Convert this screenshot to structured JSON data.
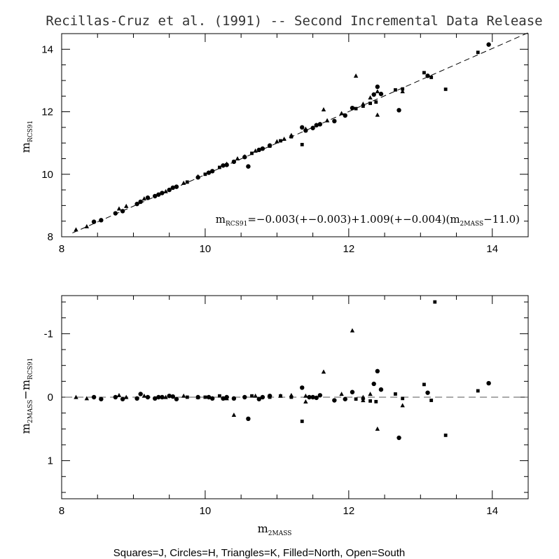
{
  "title": "Recillas-Cruz et al. (1991) -- Second Incremental Data Release",
  "footer": "Squares=J, Circles=H, Triangles=K, Filled=North, Open=South",
  "labels": {
    "top_y_main": "m",
    "top_y_sub": "RCS91",
    "bottom_y_a": "m",
    "bottom_y_a_sub": "2MASS",
    "bottom_y_b": "−m",
    "bottom_y_b_sub": "RCS91",
    "x_main": "m",
    "x_sub": "2MASS"
  },
  "equation": {
    "lhs": "m",
    "lhs_sub": "RCS91",
    "mid": "=−0.003(+−0.003)+1.009(+−0.004)(m",
    "mid_sub": "2MASS",
    "end": "−11.0)"
  },
  "chart_data": [
    {
      "type": "scatter",
      "panel": "top",
      "xlim": [
        8,
        14.5
      ],
      "ylim": [
        8,
        14.5
      ],
      "xticks": [
        8,
        10,
        12,
        14
      ],
      "yticks": [
        8,
        10,
        12,
        14
      ],
      "xtick_labels": [
        "8",
        "10",
        "12",
        "14"
      ],
      "ytick_labels": [
        "8",
        "10",
        "12",
        "14"
      ],
      "fit_line": {
        "intercept_at_11": -0.003,
        "slope": 1.009,
        "pivot": 11.0,
        "style": "dashed"
      },
      "series": [
        {
          "marker": "triangle",
          "points": [
            [
              8.2,
              8.23
            ],
            [
              8.35,
              8.33
            ],
            [
              8.8,
              8.9
            ],
            [
              8.9,
              8.98
            ],
            [
              9.15,
              9.22
            ],
            [
              9.45,
              9.45
            ],
            [
              9.7,
              9.72
            ],
            [
              9.9,
              9.93
            ],
            [
              10.3,
              10.33
            ],
            [
              10.45,
              10.5
            ],
            [
              10.7,
              10.75
            ],
            [
              11.0,
              11.05
            ],
            [
              11.2,
              11.25
            ],
            [
              11.4,
              11.45
            ],
            [
              11.7,
              11.72
            ],
            [
              11.9,
              11.95
            ],
            [
              12.1,
              13.15
            ],
            [
              11.65,
              12.07
            ],
            [
              12.4,
              11.9
            ],
            [
              12.75,
              12.65
            ],
            [
              12.3,
              12.45
            ],
            [
              12.4,
              12.65
            ],
            [
              10.55,
              10.57
            ],
            [
              11.1,
              11.13
            ],
            [
              12.2,
              12.25
            ]
          ]
        },
        {
          "marker": "circle",
          "points": [
            [
              8.45,
              8.48
            ],
            [
              8.55,
              8.53
            ],
            [
              8.75,
              8.75
            ],
            [
              8.85,
              8.82
            ],
            [
              9.05,
              9.05
            ],
            [
              9.1,
              9.12
            ],
            [
              9.2,
              9.25
            ],
            [
              9.3,
              9.3
            ],
            [
              9.4,
              9.4
            ],
            [
              9.5,
              9.5
            ],
            [
              9.6,
              9.6
            ],
            [
              9.9,
              9.9
            ],
            [
              10.05,
              10.05
            ],
            [
              10.1,
              10.1
            ],
            [
              10.3,
              10.3
            ],
            [
              10.4,
              10.4
            ],
            [
              10.55,
              10.55
            ],
            [
              10.6,
              10.25
            ],
            [
              10.8,
              10.82
            ],
            [
              10.9,
              10.92
            ],
            [
              11.35,
              11.5
            ],
            [
              11.5,
              11.48
            ],
            [
              11.6,
              11.6
            ],
            [
              11.8,
              11.7
            ],
            [
              11.95,
              11.88
            ],
            [
              12.05,
              12.12
            ],
            [
              12.35,
              12.55
            ],
            [
              12.4,
              12.8
            ],
            [
              12.45,
              12.57
            ],
            [
              12.7,
              12.05
            ],
            [
              13.1,
              13.15
            ],
            [
              13.95,
              14.15
            ],
            [
              9.35,
              9.35
            ],
            [
              9.55,
              9.57
            ],
            [
              10.25,
              10.28
            ],
            [
              10.75,
              10.78
            ],
            [
              11.4,
              11.4
            ],
            [
              11.55,
              11.57
            ]
          ]
        },
        {
          "marker": "square",
          "points": [
            [
              9.75,
              9.75
            ],
            [
              10.0,
              10.0
            ],
            [
              10.2,
              10.22
            ],
            [
              10.65,
              10.67
            ],
            [
              11.05,
              11.07
            ],
            [
              11.35,
              10.95
            ],
            [
              12.1,
              12.1
            ],
            [
              12.2,
              12.18
            ],
            [
              12.3,
              12.27
            ],
            [
              12.38,
              12.31
            ],
            [
              12.65,
              12.7
            ],
            [
              12.75,
              12.73
            ],
            [
              13.05,
              13.25
            ],
            [
              13.15,
              13.1
            ],
            [
              13.35,
              12.72
            ],
            [
              13.8,
              13.9
            ],
            [
              10.9,
              10.9
            ],
            [
              11.2,
              11.2
            ]
          ]
        }
      ]
    },
    {
      "type": "scatter",
      "panel": "bottom",
      "xlim": [
        8,
        14.5
      ],
      "ylim": [
        1.6,
        -1.6
      ],
      "xticks": [
        8,
        10,
        12,
        14
      ],
      "yticks": [
        -1,
        0,
        1
      ],
      "xtick_labels": [
        "8",
        "10",
        "12",
        "14"
      ],
      "ytick_labels": [
        "-1",
        "0",
        "1"
      ],
      "zero_line": "dashed",
      "series": [
        {
          "marker": "triangle",
          "points": [
            [
              8.2,
              0.0
            ],
            [
              8.35,
              0.02
            ],
            [
              8.8,
              -0.03
            ],
            [
              8.9,
              0.0
            ],
            [
              9.15,
              -0.02
            ],
            [
              9.45,
              0.0
            ],
            [
              9.7,
              -0.02
            ],
            [
              9.9,
              0.0
            ],
            [
              10.3,
              0.02
            ],
            [
              10.4,
              0.28
            ],
            [
              10.7,
              -0.02
            ],
            [
              11.05,
              -0.02
            ],
            [
              11.2,
              -0.03
            ],
            [
              11.4,
              -0.02
            ],
            [
              11.4,
              0.07
            ],
            [
              11.65,
              -0.4
            ],
            [
              11.9,
              -0.05
            ],
            [
              12.05,
              -1.05
            ],
            [
              12.2,
              0.05
            ],
            [
              12.4,
              0.5
            ],
            [
              12.75,
              0.13
            ],
            [
              12.3,
              -0.05
            ],
            [
              12.2,
              0.0
            ]
          ]
        },
        {
          "marker": "circle",
          "points": [
            [
              8.45,
              0.0
            ],
            [
              8.55,
              0.03
            ],
            [
              8.75,
              0.0
            ],
            [
              8.85,
              0.03
            ],
            [
              9.05,
              0.02
            ],
            [
              9.1,
              -0.05
            ],
            [
              9.2,
              0.0
            ],
            [
              9.3,
              0.02
            ],
            [
              9.4,
              0.0
            ],
            [
              9.5,
              -0.02
            ],
            [
              9.6,
              0.03
            ],
            [
              9.9,
              0.0
            ],
            [
              10.05,
              0.0
            ],
            [
              10.1,
              0.02
            ],
            [
              10.3,
              0.0
            ],
            [
              10.4,
              0.02
            ],
            [
              10.55,
              0.0
            ],
            [
              10.6,
              0.34
            ],
            [
              10.8,
              0.0
            ],
            [
              10.9,
              -0.02
            ],
            [
              11.35,
              -0.15
            ],
            [
              11.5,
              0.0
            ],
            [
              11.6,
              -0.03
            ],
            [
              11.8,
              0.05
            ],
            [
              11.95,
              0.03
            ],
            [
              12.05,
              -0.08
            ],
            [
              12.35,
              -0.21
            ],
            [
              12.4,
              -0.41
            ],
            [
              12.45,
              -0.12
            ],
            [
              12.7,
              0.64
            ],
            [
              13.1,
              -0.07
            ],
            [
              13.95,
              -0.22
            ],
            [
              9.35,
              0.0
            ],
            [
              9.55,
              -0.01
            ],
            [
              10.25,
              0.02
            ],
            [
              10.75,
              0.03
            ],
            [
              11.45,
              0.0
            ],
            [
              11.55,
              0.01
            ]
          ]
        },
        {
          "marker": "square",
          "points": [
            [
              9.75,
              0.0
            ],
            [
              10.0,
              0.0
            ],
            [
              10.2,
              -0.02
            ],
            [
              10.65,
              -0.02
            ],
            [
              11.05,
              -0.02
            ],
            [
              11.35,
              0.38
            ],
            [
              12.1,
              0.03
            ],
            [
              12.2,
              0.02
            ],
            [
              12.3,
              0.06
            ],
            [
              12.38,
              0.07
            ],
            [
              12.65,
              -0.05
            ],
            [
              12.75,
              0.02
            ],
            [
              13.05,
              -0.2
            ],
            [
              13.15,
              0.05
            ],
            [
              13.2,
              -1.5
            ],
            [
              13.35,
              0.6
            ],
            [
              13.8,
              -0.1
            ],
            [
              10.9,
              0.0
            ],
            [
              11.2,
              0.0
            ]
          ]
        }
      ]
    }
  ]
}
